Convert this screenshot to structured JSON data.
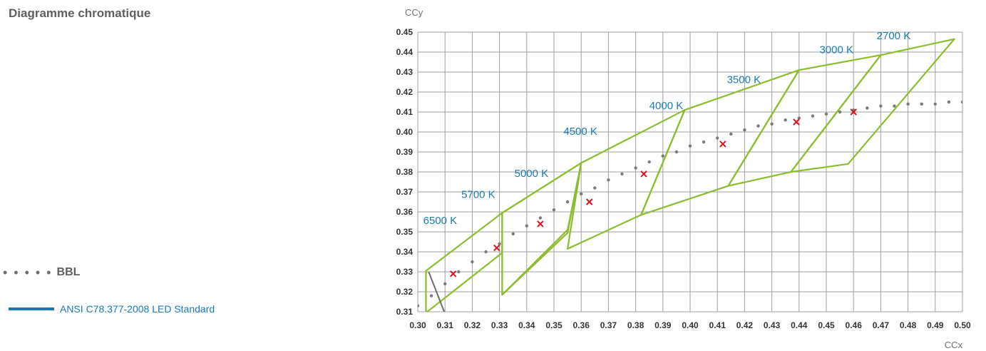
{
  "title": "Diagramme chromatique",
  "legend": {
    "bbl_label": "BBL",
    "ansi_label": "ANSI C78.377-2008 LED Standard"
  },
  "colors": {
    "quadrangle": "#8cbd2d",
    "bbl": "#7a7a7a",
    "marker": "#d4151b",
    "cct_label": "#1a7ab5",
    "grid": "#a0a0a0"
  },
  "chart_data": {
    "type": "scatter",
    "xlabel": "CCx",
    "ylabel": "CCy",
    "xlim": [
      0.3,
      0.5
    ],
    "ylim": [
      0.31,
      0.45
    ],
    "x_ticks": [
      "0.30",
      "0.31",
      "0.32",
      "0.33",
      "0.34",
      "0.35",
      "0.36",
      "0.37",
      "0.38",
      "0.39",
      "0.40",
      "0.41",
      "0.42",
      "0.43",
      "0.44",
      "0.45",
      "0.46",
      "0.47",
      "0.48",
      "0.49",
      "0.50"
    ],
    "y_ticks": [
      "0.31",
      "0.32",
      "0.33",
      "0.34",
      "0.35",
      "0.36",
      "0.37",
      "0.38",
      "0.39",
      "0.40",
      "0.41",
      "0.42",
      "0.43",
      "0.44",
      "0.45"
    ],
    "grid": true,
    "cct_labels": [
      {
        "label": "6500 K",
        "x": 0.302,
        "y": 0.354
      },
      {
        "label": "5700 K",
        "x": 0.316,
        "y": 0.367
      },
      {
        "label": "5000 K",
        "x": 0.3355,
        "y": 0.3775
      },
      {
        "label": "4500 K",
        "x": 0.3535,
        "y": 0.3985
      },
      {
        "label": "4000 K",
        "x": 0.385,
        "y": 0.4115
      },
      {
        "label": "3500 K",
        "x": 0.4135,
        "y": 0.4245
      },
      {
        "label": "3000 K",
        "x": 0.4475,
        "y": 0.4395
      },
      {
        "label": "2700 K",
        "x": 0.4685,
        "y": 0.4465
      }
    ],
    "quadrangles": [
      {
        "name": "6500 K",
        "points": [
          [
            0.303,
            0.3305
          ],
          [
            0.331,
            0.3595
          ],
          [
            0.331,
            0.3395
          ],
          [
            0.303,
            0.3095
          ]
        ]
      },
      {
        "name": "5700 K",
        "points": [
          [
            0.331,
            0.3595
          ],
          [
            0.36,
            0.3845
          ],
          [
            0.355,
            0.351
          ],
          [
            0.331,
            0.3185
          ]
        ]
      },
      {
        "name": "5000 K",
        "points": [
          [
            0.331,
            0.3595
          ],
          [
            0.36,
            0.3845
          ],
          [
            0.355,
            0.3495
          ],
          [
            0.331,
            0.3185
          ]
        ]
      },
      {
        "name": "4500 K",
        "points": [
          [
            0.36,
            0.3845
          ],
          [
            0.398,
            0.411
          ],
          [
            0.382,
            0.3585
          ],
          [
            0.355,
            0.3415
          ]
        ]
      },
      {
        "name": "4000 K",
        "points": [
          [
            0.398,
            0.411
          ],
          [
            0.44,
            0.431
          ],
          [
            0.414,
            0.373
          ],
          [
            0.382,
            0.3585
          ]
        ]
      },
      {
        "name": "3500 K",
        "points": [
          [
            0.44,
            0.431
          ],
          [
            0.47,
            0.4385
          ],
          [
            0.437,
            0.38
          ],
          [
            0.414,
            0.373
          ]
        ]
      },
      {
        "name": "3000 K",
        "points": [
          [
            0.47,
            0.4385
          ],
          [
            0.497,
            0.4465
          ],
          [
            0.458,
            0.384
          ],
          [
            0.437,
            0.38
          ]
        ]
      }
    ],
    "bbl_points": [
      [
        0.3,
        0.313
      ],
      [
        0.305,
        0.318
      ],
      [
        0.31,
        0.324
      ],
      [
        0.315,
        0.33
      ],
      [
        0.32,
        0.335
      ],
      [
        0.325,
        0.34
      ],
      [
        0.33,
        0.344
      ],
      [
        0.335,
        0.349
      ],
      [
        0.34,
        0.353
      ],
      [
        0.345,
        0.357
      ],
      [
        0.35,
        0.361
      ],
      [
        0.355,
        0.365
      ],
      [
        0.36,
        0.369
      ],
      [
        0.365,
        0.372
      ],
      [
        0.37,
        0.376
      ],
      [
        0.375,
        0.379
      ],
      [
        0.38,
        0.382
      ],
      [
        0.385,
        0.385
      ],
      [
        0.39,
        0.388
      ],
      [
        0.395,
        0.39
      ],
      [
        0.4,
        0.393
      ],
      [
        0.405,
        0.395
      ],
      [
        0.41,
        0.397
      ],
      [
        0.415,
        0.399
      ],
      [
        0.42,
        0.401
      ],
      [
        0.425,
        0.403
      ],
      [
        0.43,
        0.404
      ],
      [
        0.435,
        0.406
      ],
      [
        0.44,
        0.407
      ],
      [
        0.445,
        0.408
      ],
      [
        0.45,
        0.409
      ],
      [
        0.455,
        0.41
      ],
      [
        0.46,
        0.411
      ],
      [
        0.465,
        0.412
      ],
      [
        0.47,
        0.413
      ],
      [
        0.475,
        0.413
      ],
      [
        0.48,
        0.414
      ],
      [
        0.485,
        0.414
      ],
      [
        0.49,
        0.414
      ],
      [
        0.495,
        0.415
      ],
      [
        0.5,
        0.415
      ],
      [
        0.505,
        0.415
      ]
    ],
    "markers": [
      {
        "x": 0.313,
        "y": 0.329
      },
      {
        "x": 0.329,
        "y": 0.342
      },
      {
        "x": 0.345,
        "y": 0.354
      },
      {
        "x": 0.363,
        "y": 0.365
      },
      {
        "x": 0.383,
        "y": 0.379
      },
      {
        "x": 0.412,
        "y": 0.394
      },
      {
        "x": 0.439,
        "y": 0.405
      },
      {
        "x": 0.46,
        "y": 0.41
      }
    ],
    "dark_line": [
      [
        0.304,
        0.33
      ],
      [
        0.31,
        0.309
      ]
    ]
  }
}
